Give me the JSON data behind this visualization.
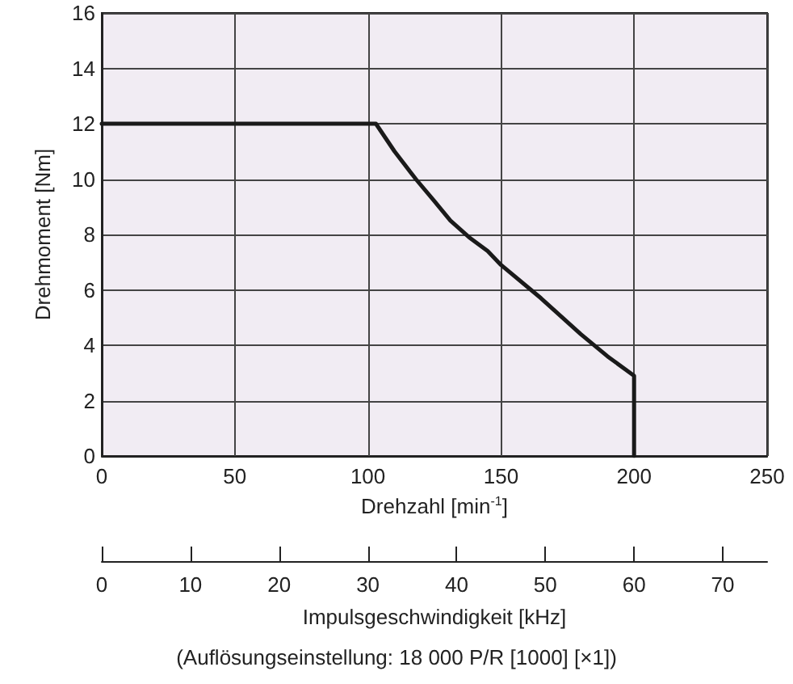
{
  "chart_data": {
    "type": "line",
    "xlabel": "Drehzahl [min$^{-1}$]",
    "ylabel": "Drehmoment [Nm]",
    "x2label": "Impulsgeschwindigkeit [kHz]",
    "annotations": [
      "(Auflösungseinstellung: 18 000 P/R [1000] [×1])"
    ],
    "xlim": [
      0,
      250
    ],
    "xticks": [
      0,
      50,
      100,
      150,
      200,
      250
    ],
    "ylim": [
      0,
      16
    ],
    "yticks": [
      0,
      2,
      4,
      6,
      8,
      10,
      12,
      14,
      16
    ],
    "x2lim": [
      0,
      75
    ],
    "x2ticks": [
      0,
      10,
      20,
      30,
      40,
      50,
      60,
      70
    ],
    "grid": true,
    "marker": "none",
    "line_style": "solid",
    "series": [
      {
        "color": "#1a1a1a",
        "x": [
          0,
          103,
          110,
          118,
          125,
          131,
          138,
          145,
          150,
          165,
          180,
          190,
          200,
          200
        ],
        "values": [
          12,
          12,
          11,
          10,
          9.2,
          8.5,
          7.9,
          7.4,
          6.9,
          5.7,
          4.4,
          3.6,
          2.9,
          0
        ]
      }
    ]
  }
}
